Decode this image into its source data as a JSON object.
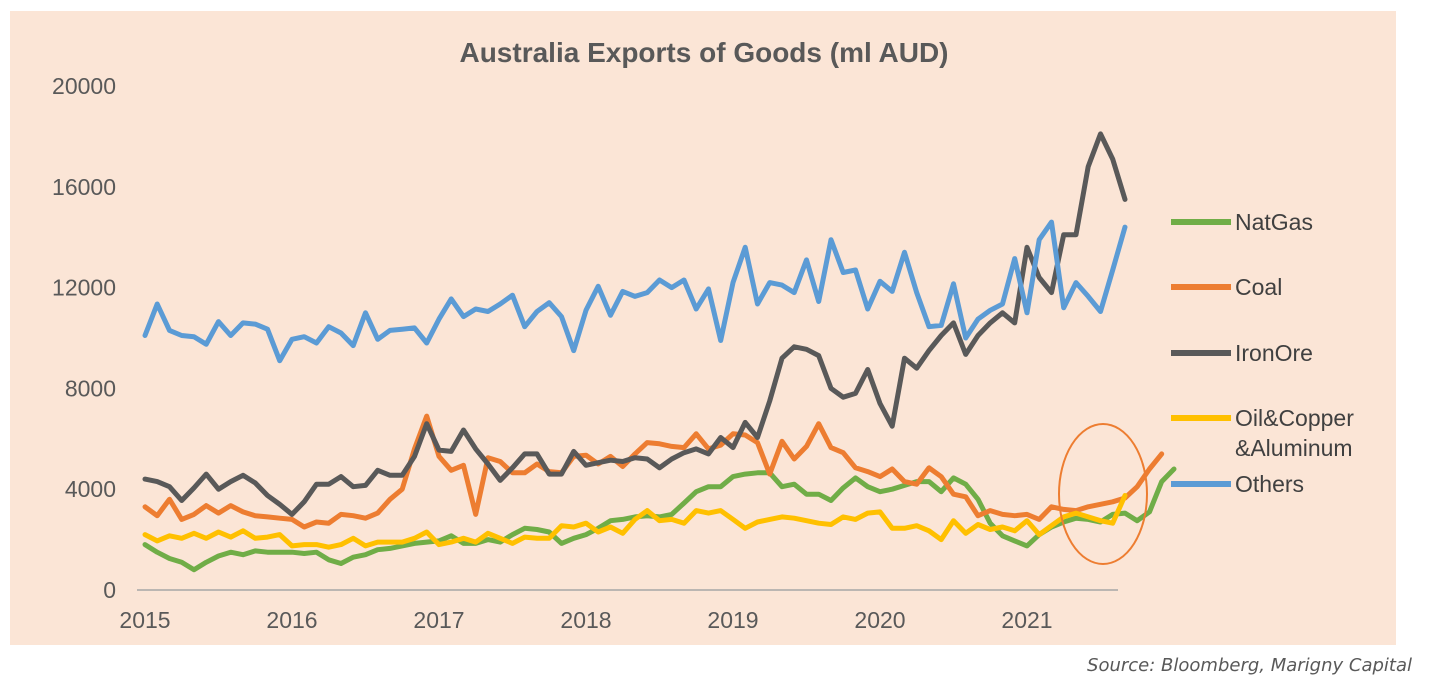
{
  "chart_data": {
    "type": "line",
    "title": "Australia Exports of Goods (ml AUD)",
    "ylim": [
      0,
      20000
    ],
    "yticks": [
      0,
      4000,
      8000,
      12000,
      16000,
      20000
    ],
    "xlim": [
      2015,
      2021.7
    ],
    "xticks": [
      "2015",
      "2016",
      "2017",
      "2018",
      "2019",
      "2020",
      "2021"
    ],
    "grid": false,
    "legend_position": "right",
    "annotation": "orange circle highlighting 2021 rise",
    "series": [
      {
        "name": "NatGas",
        "color": "#70ad47",
        "x_start": 2015.0,
        "x_step": 0.0833333,
        "values": [
          1800,
          1500,
          1250,
          1100,
          800,
          1100,
          1350,
          1500,
          1400,
          1550,
          1500,
          1500,
          1500,
          1450,
          1500,
          1200,
          1050,
          1300,
          1400,
          1600,
          1650,
          1750,
          1850,
          1900,
          1950,
          2150,
          1850,
          1850,
          2000,
          1900,
          2200,
          2450,
          2400,
          2300,
          1850,
          2050,
          2200,
          2450,
          2750,
          2800,
          2900,
          2950,
          2900,
          3000,
          3450,
          3900,
          4100,
          4100,
          4500,
          4600,
          4650,
          4650,
          4100,
          4200,
          3800,
          3800,
          3550,
          4050,
          4450,
          4100,
          3900,
          4000,
          4150,
          4300,
          4300,
          3900,
          4450,
          4200,
          3600,
          2650,
          2150,
          1950,
          1750,
          2200,
          2500,
          2700,
          2850,
          2800,
          2700,
          3000,
          3050,
          2750,
          3100,
          4300,
          4800
        ]
      },
      {
        "name": "Coal",
        "color": "#ed7d31",
        "x_start": 2015.0,
        "x_step": 0.0833333,
        "values": [
          3300,
          2950,
          3600,
          2800,
          3000,
          3350,
          3050,
          3350,
          3100,
          2950,
          2900,
          2850,
          2800,
          2500,
          2700,
          2650,
          3000,
          2950,
          2850,
          3050,
          3600,
          4000,
          5600,
          6900,
          5300,
          4750,
          4950,
          3000,
          5250,
          5100,
          4650,
          4650,
          5000,
          4700,
          4650,
          5300,
          5350,
          5000,
          5300,
          4900,
          5400,
          5850,
          5800,
          5700,
          5650,
          6200,
          5600,
          5750,
          6200,
          6150,
          5850,
          4600,
          5900,
          5200,
          5700,
          6600,
          5650,
          5450,
          4850,
          4700,
          4500,
          4800,
          4300,
          4200,
          4850,
          4500,
          3800,
          3700,
          2950,
          3150,
          3000,
          2950,
          3000,
          2800,
          3300,
          3200,
          3150,
          3300,
          3400,
          3500,
          3650,
          4100,
          4800,
          5400
        ]
      },
      {
        "name": "IronOre",
        "color": "#595959",
        "x_start": 2015.0,
        "x_step": 0.0833333,
        "values": [
          4400,
          4300,
          4100,
          3550,
          4050,
          4600,
          4000,
          4300,
          4550,
          4250,
          3750,
          3400,
          3000,
          3500,
          4200,
          4200,
          4500,
          4100,
          4150,
          4750,
          4550,
          4550,
          5300,
          6600,
          5550,
          5500,
          6350,
          5600,
          5000,
          4350,
          4850,
          5400,
          5400,
          4600,
          4600,
          5500,
          4950,
          5050,
          5150,
          5100,
          5250,
          5200,
          4850,
          5200,
          5450,
          5600,
          5400,
          6050,
          5650,
          6650,
          6050,
          7500,
          9200,
          9650,
          9550,
          9300,
          8000,
          7650,
          7800,
          8750,
          7400,
          6500,
          9200,
          8800,
          9500,
          10100,
          10600,
          9350,
          10100,
          10600,
          11000,
          10600,
          13600,
          12400,
          11800,
          14100,
          14100,
          16800,
          18100,
          17100,
          15500
        ]
      },
      {
        "name": "Oil&Copper\n&Aluminum",
        "color": "#ffc000",
        "x_start": 2015.0,
        "x_step": 0.0833333,
        "values": [
          2200,
          1950,
          2150,
          2050,
          2250,
          2050,
          2300,
          2100,
          2350,
          2050,
          2100,
          2200,
          1750,
          1800,
          1800,
          1700,
          1800,
          2050,
          1750,
          1900,
          1900,
          1900,
          2050,
          2300,
          1800,
          1900,
          2050,
          1900,
          2250,
          2050,
          1850,
          2100,
          2050,
          2050,
          2550,
          2500,
          2650,
          2300,
          2500,
          2250,
          2800,
          3150,
          2750,
          2800,
          2650,
          3150,
          3050,
          3150,
          2800,
          2450,
          2700,
          2800,
          2900,
          2850,
          2750,
          2650,
          2600,
          2900,
          2800,
          3050,
          3100,
          2450,
          2450,
          2550,
          2350,
          2000,
          2750,
          2250,
          2600,
          2400,
          2500,
          2350,
          2750,
          2200,
          2550,
          2900,
          3050,
          2900,
          2750,
          2650,
          3750
        ]
      },
      {
        "name": "Others",
        "color": "#5b9bd5",
        "x_start": 2015.0,
        "x_step": 0.0833333,
        "values": [
          10100,
          11350,
          10300,
          10100,
          10050,
          9750,
          10650,
          10100,
          10600,
          10550,
          10350,
          9100,
          9950,
          10050,
          9800,
          10450,
          10200,
          9700,
          11000,
          9950,
          10300,
          10350,
          10400,
          9800,
          10750,
          11550,
          10850,
          11150,
          11050,
          11350,
          11700,
          10450,
          11050,
          11400,
          10850,
          9500,
          11100,
          12050,
          10900,
          11850,
          11650,
          11800,
          12300,
          12000,
          12300,
          11150,
          11950,
          9900,
          12200,
          13600,
          11350,
          12200,
          12100,
          11800,
          13100,
          11450,
          13900,
          12600,
          12700,
          11150,
          12250,
          11850,
          13400,
          11800,
          10450,
          10500,
          12150,
          10000,
          10750,
          11100,
          11350,
          13150,
          11000,
          13900,
          14600,
          11200,
          12200,
          11650,
          11050,
          12700,
          14400
        ]
      }
    ]
  },
  "source": "Source: Bloomberg, Marigny Capital"
}
